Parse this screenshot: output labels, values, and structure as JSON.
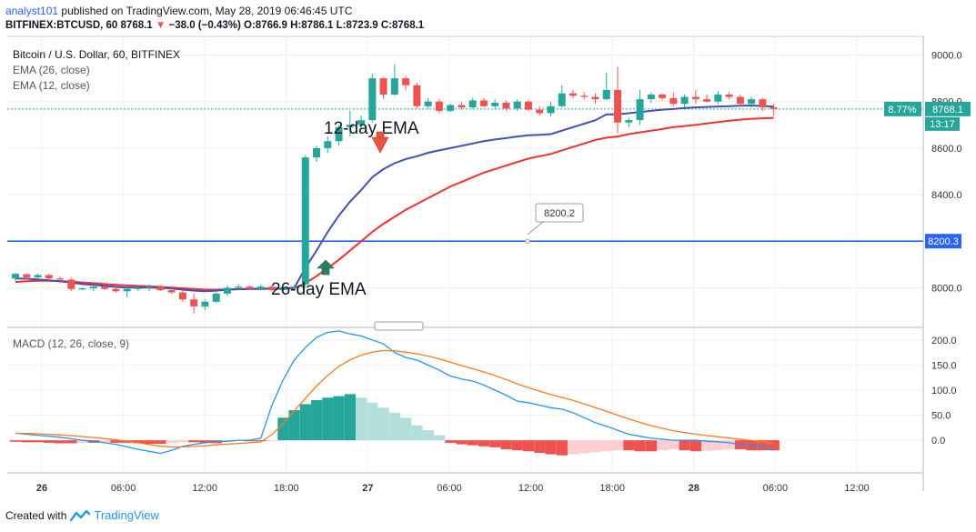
{
  "header": {
    "user": "analyst101",
    "published": "published on TradingView.com, May 28, 2019 06:46:45 UTC",
    "symbol": "BITFINEX:BTCUSD, 60",
    "last": "8768.1",
    "change": "−38.0 (−0.43%)",
    "ohlc": "O:8766.9 H:8786.1 L:8723.9 C:8768.1"
  },
  "legend": {
    "title": "Bitcoin / U.S. Dollar, 60, BITFINEX",
    "ema26": "EMA (26, close)",
    "ema12": "EMA (12, close)",
    "macd": "MACD (12, 26, close, 9)"
  },
  "annotations": {
    "ema12_label": "12-day EMA",
    "ema26_label": "26-day EMA",
    "callout": "8200.2"
  },
  "price_axis": {
    "ticks": [
      "9000.0",
      "8800.0",
      "8600.0",
      "8400.0",
      "8200.0",
      "8000.0"
    ],
    "last_price": "8768.1",
    "percent_badge": "8.77%",
    "countdown": "13:17",
    "line_price": "8200.3"
  },
  "macd_axis": {
    "ticks": [
      "200.0",
      "150.0",
      "100.0",
      "50.0",
      "0.0"
    ]
  },
  "time_axis": {
    "ticks": [
      "26",
      "06:00",
      "12:00",
      "18:00",
      "27",
      "06:00",
      "12:00",
      "18:00",
      "28",
      "06:00",
      "12:00"
    ]
  },
  "footer": {
    "created_with": "Created with",
    "brand": "TradingView"
  },
  "colors": {
    "up": "#26a69a",
    "down": "#ef5350",
    "ema12": "#3f51b5",
    "ema26": "#f23030",
    "macd_line": "#2196f3",
    "signal_line": "#ff7a1a",
    "hline": "#2962ff",
    "dotted": "#26a69a",
    "hist_up_strong": "#26a69a",
    "hist_up_weak": "#b2dfdb",
    "hist_down_strong": "#ef5350",
    "hist_down_weak": "#ffcdd2"
  },
  "chart_data": {
    "type": "candlestick",
    "price_range": [
      7830,
      9080
    ],
    "macd_range": [
      -65,
      225
    ],
    "time_ticks": [
      "26",
      "06:00",
      "12:00",
      "18:00",
      "27",
      "06:00",
      "12:00",
      "18:00",
      "28",
      "06:00",
      "12:00"
    ],
    "horizontal_line": 8200.3,
    "candles": [
      {
        "o": 8040,
        "h": 8065,
        "l": 8030,
        "c": 8060
      },
      {
        "o": 8058,
        "h": 8062,
        "l": 8035,
        "c": 8045
      },
      {
        "o": 8045,
        "h": 8060,
        "l": 8035,
        "c": 8055
      },
      {
        "o": 8055,
        "h": 8060,
        "l": 8030,
        "c": 8040
      },
      {
        "o": 8040,
        "h": 8048,
        "l": 8020,
        "c": 8035
      },
      {
        "o": 8035,
        "h": 8045,
        "l": 7985,
        "c": 7995
      },
      {
        "o": 7995,
        "h": 8000,
        "l": 7990,
        "c": 7998
      },
      {
        "o": 7998,
        "h": 8015,
        "l": 7985,
        "c": 8005
      },
      {
        "o": 8005,
        "h": 8010,
        "l": 7990,
        "c": 7995
      },
      {
        "o": 7995,
        "h": 8008,
        "l": 7980,
        "c": 7985
      },
      {
        "o": 7985,
        "h": 8005,
        "l": 7960,
        "c": 7995
      },
      {
        "o": 7995,
        "h": 8008,
        "l": 7985,
        "c": 8000
      },
      {
        "o": 8000,
        "h": 8015,
        "l": 7985,
        "c": 8005
      },
      {
        "o": 8005,
        "h": 8010,
        "l": 7985,
        "c": 7990
      },
      {
        "o": 7990,
        "h": 8000,
        "l": 7975,
        "c": 7980
      },
      {
        "o": 7980,
        "h": 7990,
        "l": 7940,
        "c": 7950
      },
      {
        "o": 7950,
        "h": 7975,
        "l": 7890,
        "c": 7920
      },
      {
        "o": 7920,
        "h": 7950,
        "l": 7905,
        "c": 7940
      },
      {
        "o": 7940,
        "h": 7980,
        "l": 7935,
        "c": 7975
      },
      {
        "o": 7975,
        "h": 8010,
        "l": 7965,
        "c": 8000
      },
      {
        "o": 8000,
        "h": 8015,
        "l": 7990,
        "c": 8005
      },
      {
        "o": 8005,
        "h": 8010,
        "l": 7990,
        "c": 7995
      },
      {
        "o": 7995,
        "h": 8015,
        "l": 7990,
        "c": 8005
      },
      {
        "o": 8005,
        "h": 8012,
        "l": 7985,
        "c": 7990
      },
      {
        "o": 7990,
        "h": 8005,
        "l": 7985,
        "c": 8000
      },
      {
        "o": 8000,
        "h": 8010,
        "l": 7995,
        "c": 8005
      },
      {
        "o": 8015,
        "h": 8570,
        "l": 8000,
        "c": 8560
      },
      {
        "o": 8560,
        "h": 8610,
        "l": 8540,
        "c": 8600
      },
      {
        "o": 8600,
        "h": 8650,
        "l": 8580,
        "c": 8630
      },
      {
        "o": 8630,
        "h": 8700,
        "l": 8610,
        "c": 8690
      },
      {
        "o": 8690,
        "h": 8760,
        "l": 8650,
        "c": 8700
      },
      {
        "o": 8700,
        "h": 8740,
        "l": 8680,
        "c": 8720
      },
      {
        "o": 8720,
        "h": 8920,
        "l": 8710,
        "c": 8900
      },
      {
        "o": 8900,
        "h": 8905,
        "l": 8810,
        "c": 8830
      },
      {
        "o": 8830,
        "h": 8960,
        "l": 8825,
        "c": 8900
      },
      {
        "o": 8900,
        "h": 8910,
        "l": 8850,
        "c": 8870
      },
      {
        "o": 8870,
        "h": 8880,
        "l": 8770,
        "c": 8780
      },
      {
        "o": 8780,
        "h": 8815,
        "l": 8770,
        "c": 8800
      },
      {
        "o": 8800,
        "h": 8810,
        "l": 8750,
        "c": 8760
      },
      {
        "o": 8760,
        "h": 8790,
        "l": 8755,
        "c": 8785
      },
      {
        "o": 8785,
        "h": 8800,
        "l": 8765,
        "c": 8775
      },
      {
        "o": 8775,
        "h": 8815,
        "l": 8770,
        "c": 8805
      },
      {
        "o": 8805,
        "h": 8815,
        "l": 8775,
        "c": 8780
      },
      {
        "o": 8780,
        "h": 8810,
        "l": 8770,
        "c": 8795
      },
      {
        "o": 8795,
        "h": 8805,
        "l": 8760,
        "c": 8770
      },
      {
        "o": 8770,
        "h": 8810,
        "l": 8760,
        "c": 8800
      },
      {
        "o": 8800,
        "h": 8808,
        "l": 8760,
        "c": 8765
      },
      {
        "o": 8765,
        "h": 8780,
        "l": 8740,
        "c": 8750
      },
      {
        "o": 8750,
        "h": 8800,
        "l": 8735,
        "c": 8780
      },
      {
        "o": 8780,
        "h": 8870,
        "l": 8775,
        "c": 8835
      },
      {
        "o": 8835,
        "h": 8850,
        "l": 8815,
        "c": 8825
      },
      {
        "o": 8825,
        "h": 8840,
        "l": 8810,
        "c": 8820
      },
      {
        "o": 8820,
        "h": 8835,
        "l": 8790,
        "c": 8810
      },
      {
        "o": 8810,
        "h": 8925,
        "l": 8805,
        "c": 8850
      },
      {
        "o": 8850,
        "h": 8950,
        "l": 8665,
        "c": 8710
      },
      {
        "o": 8710,
        "h": 8730,
        "l": 8690,
        "c": 8720
      },
      {
        "o": 8720,
        "h": 8850,
        "l": 8700,
        "c": 8810
      },
      {
        "o": 8810,
        "h": 8840,
        "l": 8795,
        "c": 8830
      },
      {
        "o": 8830,
        "h": 8835,
        "l": 8805,
        "c": 8815
      },
      {
        "o": 8815,
        "h": 8840,
        "l": 8780,
        "c": 8790
      },
      {
        "o": 8790,
        "h": 8830,
        "l": 8775,
        "c": 8820
      },
      {
        "o": 8820,
        "h": 8850,
        "l": 8790,
        "c": 8810
      },
      {
        "o": 8810,
        "h": 8830,
        "l": 8795,
        "c": 8800
      },
      {
        "o": 8800,
        "h": 8845,
        "l": 8790,
        "c": 8830
      },
      {
        "o": 8830,
        "h": 8840,
        "l": 8810,
        "c": 8820
      },
      {
        "o": 8820,
        "h": 8830,
        "l": 8780,
        "c": 8790
      },
      {
        "o": 8790,
        "h": 8820,
        "l": 8775,
        "c": 8810
      },
      {
        "o": 8810,
        "h": 8815,
        "l": 8760,
        "c": 8775
      },
      {
        "o": 8775,
        "h": 8790,
        "l": 8740,
        "c": 8768
      }
    ],
    "ema12": [
      8040,
      8039,
      8036,
      8032,
      8028,
      8022,
      8016,
      8013,
      8008,
      8004,
      8001,
      8001,
      8001,
      8000,
      7997,
      7992,
      7988,
      7985,
      7988,
      7992,
      7994,
      7995,
      7996,
      7997,
      7998,
      8000,
      8085,
      8160,
      8240,
      8310,
      8370,
      8420,
      8475,
      8510,
      8535,
      8553,
      8565,
      8580,
      8590,
      8600,
      8610,
      8620,
      8630,
      8637,
      8643,
      8650,
      8655,
      8657,
      8660,
      8675,
      8690,
      8705,
      8720,
      8745,
      8745,
      8750,
      8755,
      8760,
      8765,
      8768,
      8772,
      8775,
      8777,
      8779,
      8780,
      8782,
      8783,
      8781,
      8778
    ],
    "ema26": [
      8025,
      8028,
      8030,
      8030,
      8029,
      8026,
      8023,
      8020,
      8016,
      8013,
      8010,
      8008,
      8006,
      8004,
      8001,
      7998,
      7995,
      7992,
      7992,
      7993,
      7994,
      7995,
      7995,
      7996,
      7997,
      7998,
      8020,
      8050,
      8085,
      8120,
      8160,
      8200,
      8240,
      8275,
      8305,
      8335,
      8360,
      8385,
      8410,
      8435,
      8455,
      8475,
      8495,
      8510,
      8525,
      8540,
      8555,
      8565,
      8575,
      8590,
      8605,
      8620,
      8635,
      8645,
      8650,
      8660,
      8668,
      8675,
      8682,
      8690,
      8695,
      8700,
      8706,
      8712,
      8718,
      8722,
      8726,
      8728,
      8730
    ],
    "macd": [
      14,
      12,
      10,
      8,
      6,
      3,
      0,
      -2,
      -5,
      -8,
      -13,
      -18,
      -22,
      -26,
      -20,
      -12,
      -8,
      -5,
      -3,
      -2,
      0,
      0,
      4,
      70,
      120,
      160,
      185,
      205,
      215,
      218,
      212,
      208,
      200,
      192,
      175,
      165,
      160,
      150,
      140,
      128,
      122,
      118,
      110,
      100,
      90,
      78,
      75,
      70,
      65,
      62,
      55,
      45,
      35,
      28,
      20,
      12,
      8,
      4,
      2,
      0,
      0,
      0,
      -2,
      -3,
      -5,
      -8,
      -10,
      -12,
      -20
    ]
  },
  "histogram": [
    -3,
    -4,
    -4,
    -5,
    -6,
    -6,
    -5,
    -5,
    -4,
    -5,
    -5,
    -6,
    -7,
    -7,
    -6,
    -4,
    -4,
    -5,
    -6,
    -3,
    -2,
    -2,
    -2,
    -1,
    45,
    60,
    72,
    80,
    85,
    88,
    92,
    85,
    75,
    65,
    55,
    45,
    30,
    20,
    10,
    -5,
    -8,
    -10,
    -12,
    -14,
    -18,
    -20,
    -22,
    -25,
    -28,
    -30,
    -28,
    -26,
    -24,
    -22,
    -20,
    -20,
    -22,
    -22,
    -20,
    -18,
    -20,
    -22,
    -21,
    -20,
    -18,
    -18,
    -20,
    -20,
    -20
  ]
}
